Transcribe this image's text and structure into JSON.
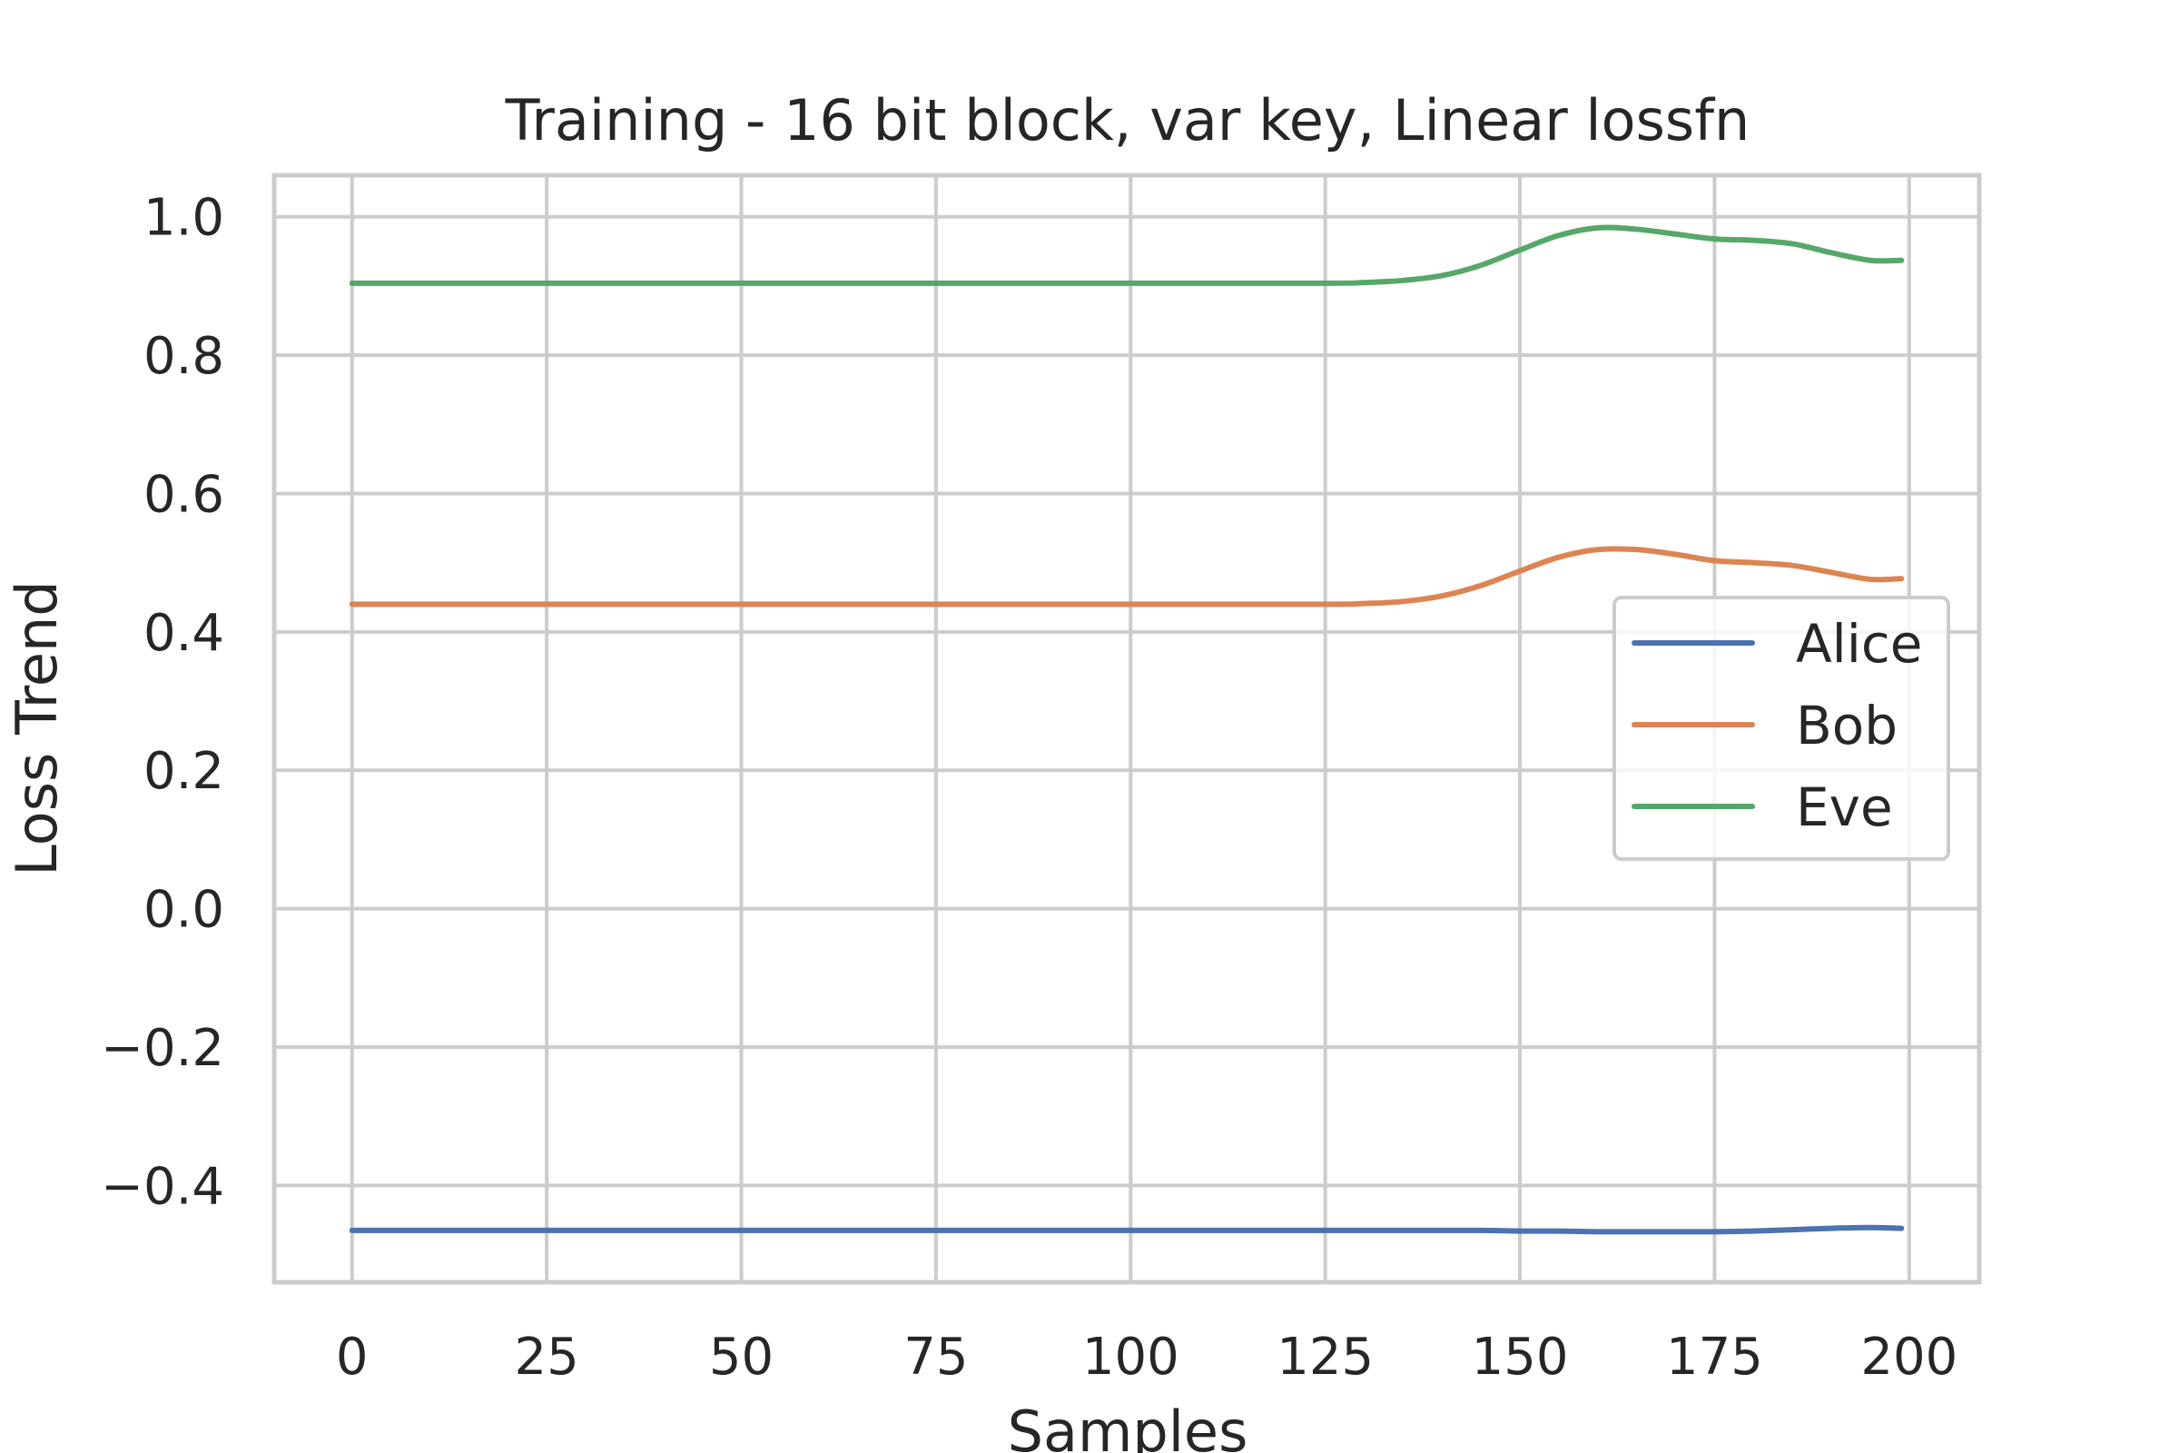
{
  "chart_data": {
    "type": "line",
    "title": "Training - 16 bit block, var key, Linear lossfn",
    "xlabel": "Samples",
    "ylabel": "Loss Trend",
    "xlim": [
      -10,
      209
    ],
    "ylim": [
      -0.54,
      1.06
    ],
    "xticks": [
      0,
      25,
      50,
      75,
      100,
      125,
      150,
      175,
      200
    ],
    "xtick_labels": [
      "0",
      "25",
      "50",
      "75",
      "100",
      "125",
      "150",
      "175",
      "200"
    ],
    "yticks": [
      -0.4,
      -0.2,
      0.0,
      0.2,
      0.4,
      0.6,
      0.8,
      1.0
    ],
    "ytick_labels": [
      "−0.4",
      "−0.2",
      "0.0",
      "0.2",
      "0.4",
      "0.6",
      "0.8",
      "1.0"
    ],
    "grid": true,
    "legend_position": "center-right",
    "series": [
      {
        "name": "Alice",
        "color": "#4c72b0",
        "x": [
          0,
          25,
          50,
          75,
          100,
          125,
          135,
          145,
          150,
          155,
          160,
          165,
          170,
          175,
          180,
          185,
          190,
          195,
          199
        ],
        "y": [
          -0.465,
          -0.465,
          -0.465,
          -0.465,
          -0.465,
          -0.465,
          -0.465,
          -0.465,
          -0.466,
          -0.466,
          -0.467,
          -0.467,
          -0.467,
          -0.467,
          -0.466,
          -0.464,
          -0.462,
          -0.461,
          -0.462
        ]
      },
      {
        "name": "Bob",
        "color": "#dd8452",
        "x": [
          0,
          25,
          50,
          75,
          100,
          125,
          130,
          135,
          140,
          145,
          150,
          155,
          160,
          165,
          170,
          175,
          180,
          185,
          190,
          195,
          199
        ],
        "y": [
          0.44,
          0.44,
          0.44,
          0.44,
          0.44,
          0.44,
          0.441,
          0.444,
          0.452,
          0.467,
          0.488,
          0.508,
          0.519,
          0.519,
          0.512,
          0.503,
          0.5,
          0.496,
          0.486,
          0.476,
          0.477
        ]
      },
      {
        "name": "Eve",
        "color": "#55a868",
        "x": [
          0,
          25,
          50,
          75,
          100,
          125,
          130,
          135,
          140,
          145,
          150,
          155,
          160,
          165,
          170,
          175,
          180,
          185,
          190,
          195,
          199
        ],
        "y": [
          0.904,
          0.904,
          0.904,
          0.904,
          0.904,
          0.904,
          0.905,
          0.908,
          0.915,
          0.93,
          0.952,
          0.973,
          0.984,
          0.982,
          0.975,
          0.968,
          0.966,
          0.961,
          0.948,
          0.937,
          0.937
        ]
      }
    ]
  }
}
